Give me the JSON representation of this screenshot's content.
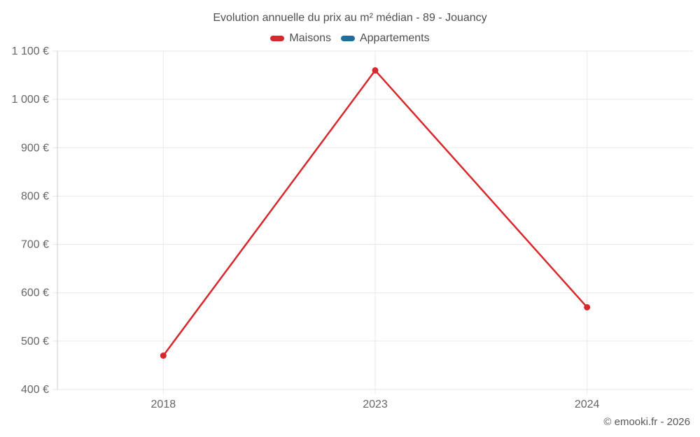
{
  "title": "Evolution annuelle du prix au m² médian - 89 - Jouancy",
  "legend": {
    "items": [
      {
        "label": "Maisons",
        "color": "#d7282c"
      },
      {
        "label": "Appartements",
        "color": "#1a6f9e"
      }
    ]
  },
  "footer": {
    "copyright": "© emooki.fr - 2026"
  },
  "colors": {
    "grid_line": "#e7e7e7",
    "axis_line": "#cccccc",
    "tick_label": "#666666",
    "title_text": "#4f4f4f"
  },
  "chart_data": {
    "type": "line",
    "title": "Evolution annuelle du prix au m² médian - 89 - Jouancy",
    "categories": [
      "2018",
      "2023",
      "2024"
    ],
    "series": [
      {
        "name": "Maisons",
        "color": "#d7282c",
        "values": [
          470,
          1060,
          570
        ]
      },
      {
        "name": "Appartements",
        "color": "#1a6f9e",
        "values": []
      }
    ],
    "xlabel": "",
    "ylabel": "",
    "ylim": [
      400,
      1100
    ],
    "ytick_step": 100,
    "ytick_labels": [
      "400 €",
      "500 €",
      "600 €",
      "700 €",
      "800 €",
      "900 €",
      "1 000 €",
      "1 100 €"
    ],
    "grid": true,
    "legend_position": "top",
    "marker": "circle",
    "currency": "€"
  }
}
